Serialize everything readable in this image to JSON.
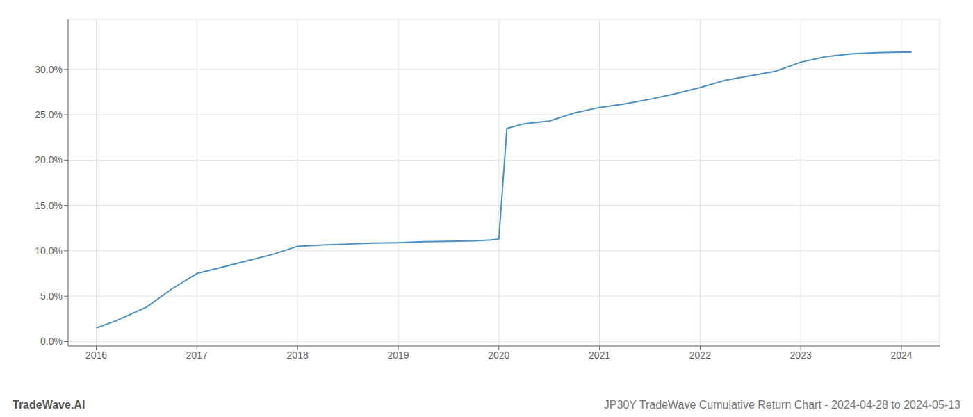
{
  "chart_data": {
    "type": "line",
    "title": "JP30Y TradeWave Cumulative Return Chart - 2024-04-28 to 2024-05-13",
    "annotations": [
      "TradeWave.AI"
    ],
    "x": [
      2016.0,
      2016.2,
      2016.5,
      2016.75,
      2017.0,
      2017.25,
      2017.5,
      2017.75,
      2018.0,
      2018.25,
      2018.5,
      2018.75,
      2019.0,
      2019.25,
      2019.5,
      2019.75,
      2019.83,
      2019.92,
      2020.0,
      2020.08,
      2020.25,
      2020.5,
      2020.75,
      2021.0,
      2021.25,
      2021.5,
      2021.75,
      2022.0,
      2022.25,
      2022.5,
      2022.75,
      2023.0,
      2023.25,
      2023.5,
      2023.75,
      2024.0,
      2024.1
    ],
    "values": [
      1.5,
      2.3,
      3.8,
      5.8,
      7.5,
      8.2,
      8.9,
      9.6,
      10.5,
      10.65,
      10.75,
      10.85,
      10.9,
      11.0,
      11.05,
      11.1,
      11.15,
      11.2,
      11.3,
      23.5,
      24.0,
      24.3,
      25.2,
      25.8,
      26.2,
      26.7,
      27.3,
      28.0,
      28.8,
      29.3,
      29.8,
      30.8,
      31.4,
      31.7,
      31.85,
      31.9,
      31.9
    ],
    "color": "#4a90c4",
    "xlim": [
      2015.72,
      2024.38
    ],
    "ylim": [
      -0.5,
      35.5
    ],
    "xticks": [
      2016,
      2017,
      2018,
      2019,
      2020,
      2021,
      2022,
      2023,
      2024
    ],
    "yticks": [
      {
        "value": 0.0,
        "label": "0.0%"
      },
      {
        "value": 5.0,
        "label": "5.0%"
      },
      {
        "value": 10.0,
        "label": "10.0%"
      },
      {
        "value": 15.0,
        "label": "15.0%"
      },
      {
        "value": 20.0,
        "label": "20.0%"
      },
      {
        "value": 25.0,
        "label": "25.0%"
      },
      {
        "value": 30.0,
        "label": "30.0%"
      }
    ],
    "grid": true
  }
}
